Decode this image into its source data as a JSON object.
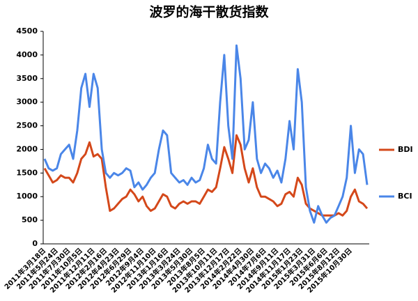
{
  "chart_data": {
    "type": "line",
    "title": "波罗的海干散货指数",
    "categories": [
      "2011年3月18日",
      null,
      null,
      "2011年5月24日",
      null,
      null,
      "2011年7月30日",
      null,
      null,
      "2011年10月5日",
      null,
      null,
      "2011年12月11日",
      null,
      null,
      "2012年2月16日",
      null,
      null,
      "2012年4月23日",
      null,
      null,
      "2012年6月29日",
      null,
      null,
      "2012年9月4日",
      null,
      null,
      "2012年11月10日",
      null,
      null,
      "2013年1月16日",
      null,
      null,
      "2013年3月24日",
      null,
      null,
      "2013年5月30日",
      null,
      null,
      "2013年8月5日",
      null,
      null,
      "2013年10月11日",
      null,
      null,
      "2013年12月17日",
      null,
      null,
      "2014年2月22日",
      null,
      null,
      "2014年4月30日",
      null,
      null,
      "2014年7月6日",
      null,
      null,
      "2014年9月11日",
      null,
      null,
      "2014年11月17日",
      null,
      null,
      "2015年1月23日",
      null,
      null,
      "2015年3月31日",
      null,
      null,
      "2015年6月6日",
      null,
      null,
      "2015年8月12日",
      null,
      null,
      "2015年10月30日",
      null,
      null,
      null,
      null
    ],
    "series": [
      {
        "name": "BDI",
        "color": "#d4481a",
        "values": [
          1600,
          1450,
          1300,
          1350,
          1450,
          1400,
          1400,
          1300,
          1500,
          1800,
          1900,
          2150,
          1850,
          1900,
          1800,
          1200,
          700,
          750,
          850,
          950,
          1000,
          1150,
          1050,
          900,
          1000,
          800,
          700,
          750,
          900,
          1050,
          1000,
          800,
          750,
          850,
          900,
          850,
          900,
          900,
          850,
          1000,
          1150,
          1100,
          1200,
          1600,
          2050,
          1800,
          1500,
          2300,
          2100,
          1600,
          1300,
          1600,
          1200,
          1000,
          1000,
          950,
          900,
          800,
          850,
          1050,
          1100,
          1000,
          1400,
          1250,
          850,
          750,
          700,
          650,
          600,
          600,
          600,
          600,
          650,
          600,
          700,
          1000,
          1150,
          900,
          850,
          750
        ]
      },
      {
        "name": "BCI",
        "color": "#4a86e8",
        "values": [
          1800,
          1600,
          1550,
          1600,
          1900,
          2000,
          2100,
          1800,
          2400,
          3300,
          3600,
          2900,
          3600,
          3300,
          2000,
          1500,
          1400,
          1500,
          1450,
          1500,
          1600,
          1550,
          1200,
          1300,
          1150,
          1250,
          1400,
          1500,
          2000,
          2400,
          2300,
          1500,
          1400,
          1300,
          1350,
          1250,
          1400,
          1300,
          1350,
          1600,
          2100,
          1800,
          1700,
          3000,
          4000,
          2500,
          1800,
          4200,
          3500,
          2000,
          2200,
          3000,
          1800,
          1500,
          1700,
          1600,
          1400,
          1550,
          1300,
          1800,
          2600,
          2000,
          3700,
          3000,
          1200,
          700,
          450,
          800,
          600,
          450,
          550,
          600,
          800,
          1000,
          1400,
          2500,
          1500,
          2000,
          1900,
          1250
        ]
      }
    ],
    "ylim": [
      0,
      4500
    ],
    "yticks": [
      0,
      500,
      1000,
      1500,
      2000,
      2500,
      3000,
      3500,
      4000,
      4500
    ],
    "grid": false,
    "legend": "right"
  }
}
